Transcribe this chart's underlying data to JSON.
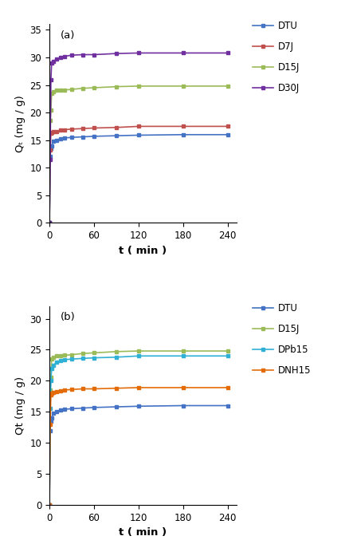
{
  "subplot_a": {
    "label": "(a)",
    "ylabel": "Qₜ (mg / g)",
    "xlabel": "t ( min )",
    "xlim": [
      0,
      252
    ],
    "ylim": [
      0,
      36
    ],
    "yticks": [
      0,
      5,
      10,
      15,
      20,
      25,
      30,
      35
    ],
    "xticks": [
      0,
      60,
      120,
      180,
      240
    ],
    "series": [
      {
        "name": "DTU",
        "color": "#4472C4",
        "t": [
          0,
          1,
          2,
          3,
          5,
          10,
          15,
          20,
          30,
          45,
          60,
          90,
          120,
          180,
          240
        ],
        "Q": [
          0,
          12.0,
          13.5,
          14.0,
          14.8,
          15.0,
          15.3,
          15.4,
          15.5,
          15.6,
          15.7,
          15.8,
          15.9,
          16.0,
          16.0
        ]
      },
      {
        "name": "D7J",
        "color": "#C0504D",
        "t": [
          0,
          1,
          2,
          3,
          5,
          10,
          15,
          20,
          30,
          45,
          60,
          90,
          120,
          180,
          240
        ],
        "Q": [
          0,
          13.2,
          16.2,
          16.4,
          16.5,
          16.6,
          16.8,
          16.9,
          17.0,
          17.1,
          17.2,
          17.3,
          17.5,
          17.5,
          17.5
        ]
      },
      {
        "name": "D15J",
        "color": "#9BBB59",
        "t": [
          0,
          1,
          2,
          3,
          5,
          10,
          15,
          20,
          30,
          45,
          60,
          90,
          120,
          180,
          240
        ],
        "Q": [
          0,
          18.5,
          20.5,
          23.5,
          23.8,
          24.0,
          24.0,
          24.1,
          24.2,
          24.4,
          24.5,
          24.7,
          24.8,
          24.8,
          24.8
        ]
      },
      {
        "name": "D30J",
        "color": "#7030A0",
        "t": [
          0,
          1,
          2,
          3,
          5,
          10,
          15,
          20,
          30,
          45,
          60,
          90,
          120,
          180,
          240
        ],
        "Q": [
          0,
          11.5,
          26.0,
          29.0,
          29.3,
          29.7,
          30.0,
          30.2,
          30.4,
          30.5,
          30.5,
          30.7,
          30.8,
          30.8,
          30.8
        ]
      }
    ]
  },
  "subplot_b": {
    "label": "(b)",
    "ylabel": "Qt (mg / g)",
    "xlabel": "t ( min )",
    "xlim": [
      0,
      252
    ],
    "ylim": [
      0,
      32
    ],
    "yticks": [
      0,
      5,
      10,
      15,
      20,
      25,
      30
    ],
    "xticks": [
      0,
      60,
      120,
      180,
      240
    ],
    "series": [
      {
        "name": "DTU",
        "color": "#4472C4",
        "t": [
          0,
          1,
          2,
          3,
          5,
          10,
          15,
          20,
          30,
          45,
          60,
          90,
          120,
          180,
          240
        ],
        "Q": [
          0,
          12.0,
          13.5,
          14.0,
          14.8,
          15.0,
          15.3,
          15.4,
          15.5,
          15.6,
          15.7,
          15.8,
          15.9,
          16.0,
          16.0
        ]
      },
      {
        "name": "D15J",
        "color": "#9BBB59",
        "t": [
          0,
          1,
          2,
          3,
          5,
          10,
          15,
          20,
          30,
          45,
          60,
          90,
          120,
          180,
          240
        ],
        "Q": [
          0,
          18.5,
          20.5,
          23.5,
          23.8,
          24.0,
          24.0,
          24.1,
          24.2,
          24.4,
          24.5,
          24.7,
          24.8,
          24.8,
          24.8
        ]
      },
      {
        "name": "DPb15",
        "color": "#31B0D5",
        "t": [
          0,
          1,
          2,
          3,
          5,
          10,
          15,
          20,
          30,
          45,
          60,
          90,
          120,
          180,
          240
        ],
        "Q": [
          0,
          15.5,
          20.0,
          22.0,
          22.5,
          23.0,
          23.2,
          23.4,
          23.5,
          23.6,
          23.7,
          23.8,
          24.0,
          24.0,
          24.0
        ]
      },
      {
        "name": "DNH15",
        "color": "#E36C09",
        "t": [
          0,
          1,
          2,
          3,
          5,
          10,
          15,
          20,
          30,
          45,
          60,
          90,
          120,
          180,
          240
        ],
        "Q": [
          0,
          13.0,
          17.8,
          18.0,
          18.1,
          18.3,
          18.4,
          18.5,
          18.6,
          18.7,
          18.7,
          18.8,
          18.9,
          18.9,
          18.9
        ]
      }
    ]
  },
  "marker": "s",
  "markersize": 3.5,
  "linewidth": 1.2,
  "legend_fontsize": 8.5,
  "label_fontsize": 9.5,
  "tick_fontsize": 8.5
}
